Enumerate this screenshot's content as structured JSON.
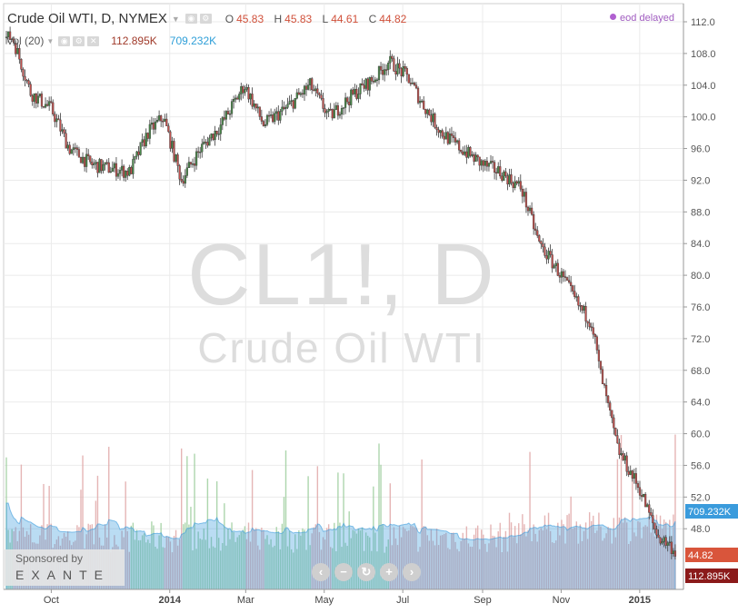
{
  "header": {
    "title": "Crude Oil WTI, D, NYMEX",
    "caret_icon": "chevron-down-icon",
    "ohlc": [
      {
        "key": "O",
        "value": "45.83"
      },
      {
        "key": "H",
        "value": "45.83"
      },
      {
        "key": "L",
        "value": "44.61"
      },
      {
        "key": "C",
        "value": "44.82"
      }
    ],
    "status": "eod delayed"
  },
  "volume_legend": {
    "label": "Vol (20)",
    "value": "112.895K",
    "ma_value": "709.232K"
  },
  "watermark": {
    "symbol": "CL1!, D",
    "name": "Crude Oil WTI"
  },
  "sponsor": {
    "line1": "Sponsored by",
    "line2": "EXANTE"
  },
  "nav_buttons": [
    "arrow-left-icon",
    "zoom-out-icon",
    "reset-icon",
    "zoom-in-icon",
    "arrow-right-icon"
  ],
  "colors": {
    "up": "#4a8a4a",
    "down": "#c0504d",
    "volume_ma": "#3a9bdc",
    "last_price": "#d9553b",
    "last_volume": "#8b1a1a"
  },
  "chart_data": {
    "type": "candlestick",
    "title": "Crude Oil WTI, D, NYMEX",
    "ylim": [
      42,
      113
    ],
    "y_ticks": [
      112.0,
      108.0,
      104.0,
      100.0,
      96.0,
      92.0,
      88.0,
      84.0,
      80.0,
      76.0,
      72.0,
      68.0,
      64.0,
      60.0,
      56.0,
      52.0,
      48.0
    ],
    "x_ticks": [
      "Oct",
      "2014",
      "Mar",
      "May",
      "Jul",
      "Sep",
      "Nov",
      "2015"
    ],
    "x_ticks_bold": [
      "2014",
      "2015"
    ],
    "last_price": "44.82",
    "last_volume_label": "112.895K",
    "volume_ma_label": "709.232K",
    "price_path": [
      [
        "2013-09-01",
        110
      ],
      [
        "2013-09-15",
        103
      ],
      [
        "2013-10-01",
        101
      ],
      [
        "2013-10-15",
        96
      ],
      [
        "2013-11-01",
        94
      ],
      [
        "2013-11-15",
        93.5
      ],
      [
        "2013-12-01",
        93
      ],
      [
        "2013-12-15",
        98
      ],
      [
        "2013-12-27",
        100
      ],
      [
        "2014-01-10",
        92
      ],
      [
        "2014-01-25",
        96
      ],
      [
        "2014-02-10",
        99
      ],
      [
        "2014-02-28",
        104
      ],
      [
        "2014-03-15",
        99
      ],
      [
        "2014-04-01",
        101
      ],
      [
        "2014-04-20",
        104
      ],
      [
        "2014-05-05",
        100
      ],
      [
        "2014-05-25",
        103
      ],
      [
        "2014-06-10",
        105
      ],
      [
        "2014-06-20",
        107
      ],
      [
        "2014-07-05",
        105
      ],
      [
        "2014-07-15",
        102
      ],
      [
        "2014-07-31",
        98
      ],
      [
        "2014-08-15",
        96
      ],
      [
        "2014-09-01",
        94
      ],
      [
        "2014-09-15",
        93
      ],
      [
        "2014-10-01",
        91
      ],
      [
        "2014-10-15",
        84
      ],
      [
        "2014-11-01",
        80
      ],
      [
        "2014-11-15",
        76
      ],
      [
        "2014-11-25",
        74
      ],
      [
        "2014-12-01",
        68
      ],
      [
        "2014-12-15",
        58
      ],
      [
        "2015-01-01",
        53
      ],
      [
        "2015-01-15",
        47
      ],
      [
        "2015-01-24",
        46
      ],
      [
        "2015-01-30",
        44.82
      ]
    ]
  }
}
